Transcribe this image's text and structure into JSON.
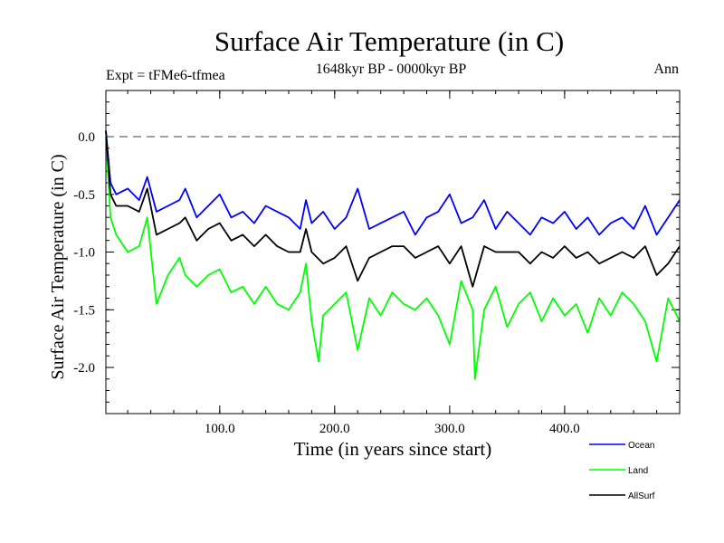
{
  "chart_data": {
    "type": "line",
    "title": "Surface Air Temperature (in C)",
    "subtitle_left": "Expt = tFMe6-tfmea",
    "subtitle_center": "1648kyr BP - 0000kyr BP",
    "subtitle_right": "Ann",
    "xlabel": "Time (in years since start)",
    "ylabel": "Surface Air Temperature (in C)",
    "xlim": [
      1,
      500
    ],
    "ylim": [
      -2.4,
      0.4
    ],
    "xticks": [
      {
        "value": 100,
        "label": "100.0"
      },
      {
        "value": 200,
        "label": "200.0"
      },
      {
        "value": 300,
        "label": "300.0"
      },
      {
        "value": 400,
        "label": "400.0"
      }
    ],
    "yticks": [
      {
        "value": 0.0,
        "label": "0.0"
      },
      {
        "value": -0.5,
        "label": "-0.5"
      },
      {
        "value": -1.0,
        "label": "-1.0"
      },
      {
        "value": -1.5,
        "label": "-1.5"
      },
      {
        "value": -2.0,
        "label": "-2.0"
      }
    ],
    "reference_line": {
      "value": 0.0,
      "style": "dashed",
      "color": "#808080"
    },
    "legend_position": "bottom-right",
    "series": [
      {
        "name": "Ocean",
        "color": "#0000ff",
        "x": [
          1,
          5,
          10,
          20,
          30,
          37,
          45,
          55,
          65,
          70,
          80,
          90,
          100,
          110,
          120,
          130,
          140,
          150,
          160,
          170,
          175,
          180,
          190,
          200,
          210,
          220,
          230,
          240,
          250,
          260,
          270,
          280,
          290,
          300,
          310,
          320,
          330,
          340,
          350,
          360,
          370,
          380,
          390,
          400,
          410,
          420,
          430,
          440,
          450,
          460,
          470,
          480,
          490,
          500
        ],
        "values": [
          0.05,
          -0.4,
          -0.5,
          -0.45,
          -0.55,
          -0.35,
          -0.65,
          -0.6,
          -0.55,
          -0.45,
          -0.7,
          -0.6,
          -0.5,
          -0.7,
          -0.65,
          -0.75,
          -0.6,
          -0.65,
          -0.7,
          -0.8,
          -0.55,
          -0.75,
          -0.65,
          -0.8,
          -0.7,
          -0.45,
          -0.8,
          -0.75,
          -0.7,
          -0.65,
          -0.85,
          -0.7,
          -0.65,
          -0.5,
          -0.75,
          -0.7,
          -0.55,
          -0.8,
          -0.65,
          -0.75,
          -0.85,
          -0.7,
          -0.75,
          -0.65,
          -0.8,
          -0.7,
          -0.85,
          -0.75,
          -0.7,
          -0.8,
          -0.6,
          -0.85,
          -0.7,
          -0.55
        ]
      },
      {
        "name": "Land",
        "color": "#00ff00",
        "x": [
          1,
          5,
          10,
          20,
          30,
          37,
          45,
          55,
          65,
          70,
          80,
          90,
          100,
          110,
          120,
          130,
          140,
          150,
          160,
          170,
          175,
          180,
          186,
          190,
          200,
          210,
          220,
          230,
          240,
          250,
          260,
          270,
          280,
          290,
          300,
          310,
          320,
          322,
          330,
          340,
          350,
          360,
          370,
          380,
          390,
          400,
          410,
          420,
          430,
          440,
          450,
          460,
          470,
          480,
          490,
          500
        ],
        "values": [
          0.0,
          -0.7,
          -0.85,
          -1.0,
          -0.95,
          -0.7,
          -1.45,
          -1.2,
          -1.05,
          -1.2,
          -1.3,
          -1.2,
          -1.15,
          -1.35,
          -1.3,
          -1.45,
          -1.3,
          -1.45,
          -1.5,
          -1.35,
          -1.1,
          -1.6,
          -1.95,
          -1.55,
          -1.45,
          -1.35,
          -1.85,
          -1.4,
          -1.55,
          -1.35,
          -1.45,
          -1.5,
          -1.4,
          -1.55,
          -1.8,
          -1.25,
          -1.5,
          -2.1,
          -1.5,
          -1.3,
          -1.65,
          -1.45,
          -1.35,
          -1.6,
          -1.4,
          -1.55,
          -1.45,
          -1.7,
          -1.4,
          -1.55,
          -1.35,
          -1.45,
          -1.6,
          -1.95,
          -1.4,
          -1.6
        ]
      },
      {
        "name": "AllSurf",
        "color": "#000000",
        "x": [
          1,
          5,
          10,
          20,
          30,
          37,
          45,
          55,
          65,
          70,
          80,
          90,
          100,
          110,
          120,
          130,
          140,
          150,
          160,
          170,
          175,
          180,
          190,
          200,
          210,
          220,
          230,
          240,
          250,
          260,
          270,
          280,
          290,
          300,
          310,
          320,
          330,
          340,
          350,
          360,
          370,
          380,
          390,
          400,
          410,
          420,
          430,
          440,
          450,
          460,
          470,
          480,
          490,
          500
        ],
        "values": [
          0.05,
          -0.5,
          -0.6,
          -0.6,
          -0.65,
          -0.45,
          -0.85,
          -0.8,
          -0.75,
          -0.7,
          -0.9,
          -0.8,
          -0.75,
          -0.9,
          -0.85,
          -0.95,
          -0.85,
          -0.95,
          -1.0,
          -1.0,
          -0.8,
          -1.0,
          -1.1,
          -1.05,
          -0.95,
          -1.25,
          -1.05,
          -1.0,
          -0.95,
          -0.95,
          -1.05,
          -1.0,
          -0.95,
          -1.1,
          -0.95,
          -1.3,
          -0.95,
          -1.0,
          -1.0,
          -1.0,
          -1.1,
          -1.0,
          -1.05,
          -0.95,
          -1.05,
          -1.0,
          -1.1,
          -1.05,
          -1.0,
          -1.05,
          -0.95,
          -1.2,
          -1.1,
          -0.95
        ]
      }
    ]
  }
}
